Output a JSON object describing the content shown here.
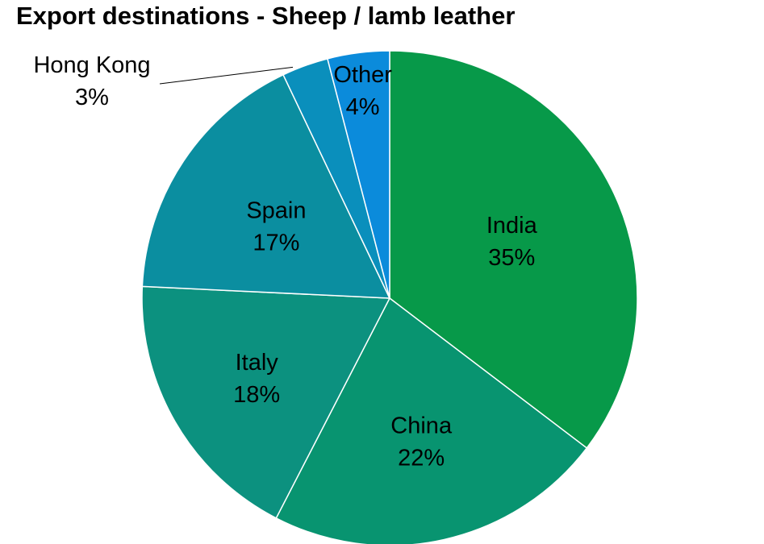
{
  "chart_data": {
    "type": "pie",
    "title": "Export destinations - Sheep / lamb leather",
    "start": "12 o'clock",
    "direction": "clockwise",
    "slices": [
      {
        "label": "India",
        "value": 35,
        "value_label": "35%",
        "color": "#079949"
      },
      {
        "label": "China",
        "value": 22,
        "value_label": "22%",
        "color": "#089470"
      },
      {
        "label": "Italy",
        "value": 18,
        "value_label": "18%",
        "color": "#0c917f"
      },
      {
        "label": "Spain",
        "value": 17,
        "value_label": "17%",
        "color": "#0b8ea0"
      },
      {
        "label": "Hong Kong",
        "value": 3,
        "value_label": "3%",
        "color": "#0a8fbc"
      },
      {
        "label": "Other",
        "value": 4,
        "value_label": "4%",
        "color": "#0b8bdb"
      }
    ]
  }
}
